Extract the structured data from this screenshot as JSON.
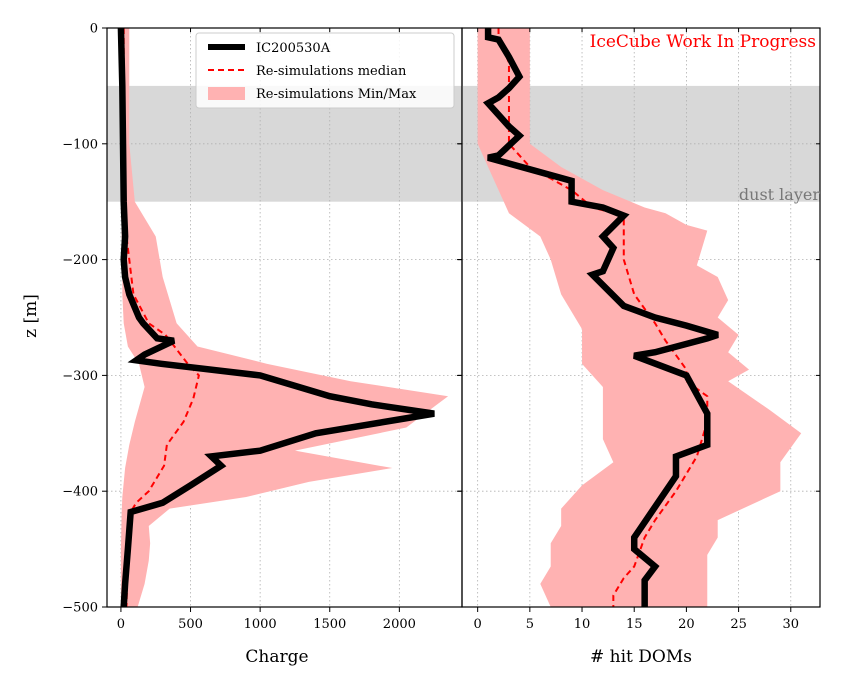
{
  "chart_data": [
    {
      "type": "line",
      "panel": "left",
      "xlabel": "Charge",
      "ylabel": "z [m]",
      "xlim": [
        -100,
        2450
      ],
      "ylim": [
        -500,
        0
      ],
      "xticks": [
        0,
        500,
        1000,
        1500,
        2000
      ],
      "yticks": [
        0,
        -100,
        -200,
        -300,
        -400,
        -500
      ],
      "grid": true,
      "legend": {
        "placement": "top-right",
        "entries": [
          "IC200530A",
          "Re-simulations median",
          "Re-simulations Min/Max"
        ]
      },
      "series": [
        {
          "name": "IC200530A",
          "color": "#000000",
          "points": [
            [
              0,
              0
            ],
            [
              10,
              -50
            ],
            [
              15,
              -100
            ],
            [
              20,
              -150
            ],
            [
              30,
              -180
            ],
            [
              20,
              -200
            ],
            [
              30,
              -215
            ],
            [
              60,
              -230
            ],
            [
              130,
              -250
            ],
            [
              160,
              -255
            ],
            [
              260,
              -268
            ],
            [
              380,
              -270
            ],
            [
              170,
              -282
            ],
            [
              110,
              -287
            ],
            [
              290,
              -290
            ],
            [
              1000,
              -300
            ],
            [
              1500,
              -318
            ],
            [
              1800,
              -325
            ],
            [
              2250,
              -333
            ],
            [
              1400,
              -350
            ],
            [
              1000,
              -365
            ],
            [
              650,
              -370
            ],
            [
              720,
              -378
            ],
            [
              500,
              -395
            ],
            [
              300,
              -410
            ],
            [
              70,
              -418
            ],
            [
              50,
              -450
            ],
            [
              30,
              -480
            ],
            [
              20,
              -500
            ]
          ]
        },
        {
          "name": "Re-simulations median",
          "color": "#ff0000",
          "points": [
            [
              20,
              0
            ],
            [
              20,
              -50
            ],
            [
              25,
              -100
            ],
            [
              30,
              -150
            ],
            [
              40,
              -180
            ],
            [
              60,
              -200
            ],
            [
              90,
              -230
            ],
            [
              200,
              -255
            ],
            [
              320,
              -265
            ],
            [
              480,
              -290
            ],
            [
              560,
              -300
            ],
            [
              520,
              -320
            ],
            [
              450,
              -340
            ],
            [
              330,
              -360
            ],
            [
              310,
              -378
            ],
            [
              200,
              -400
            ],
            [
              110,
              -410
            ],
            [
              60,
              -420
            ],
            [
              50,
              -450
            ],
            [
              40,
              -500
            ]
          ]
        },
        {
          "name": "Re-simulations Min/Max",
          "color": "#ffb2b2",
          "upper": [
            [
              60,
              0
            ],
            [
              60,
              -50
            ],
            [
              60,
              -100
            ],
            [
              100,
              -150
            ],
            [
              250,
              -180
            ],
            [
              300,
              -215
            ],
            [
              400,
              -255
            ],
            [
              550,
              -275
            ],
            [
              1050,
              -290
            ],
            [
              1650,
              -305
            ],
            [
              2350,
              -318
            ],
            [
              2050,
              -345
            ],
            [
              1250,
              -365
            ],
            [
              1950,
              -380
            ],
            [
              1350,
              -392
            ],
            [
              900,
              -405
            ],
            [
              350,
              -415
            ],
            [
              200,
              -430
            ],
            [
              210,
              -445
            ],
            [
              200,
              -460
            ],
            [
              170,
              -480
            ],
            [
              120,
              -500
            ]
          ],
          "lower": [
            [
              0,
              0
            ],
            [
              0,
              -50
            ],
            [
              0,
              -100
            ],
            [
              5,
              -150
            ],
            [
              5,
              -180
            ],
            [
              10,
              -200
            ],
            [
              10,
              -230
            ],
            [
              20,
              -255
            ],
            [
              50,
              -275
            ],
            [
              130,
              -290
            ],
            [
              170,
              -310
            ],
            [
              100,
              -340
            ],
            [
              60,
              -360
            ],
            [
              30,
              -380
            ],
            [
              10,
              -405
            ],
            [
              5,
              -420
            ],
            [
              0,
              -450
            ],
            [
              0,
              -500
            ]
          ]
        }
      ]
    },
    {
      "type": "line",
      "panel": "right",
      "xlabel": "# hit DOMs",
      "xlim": [
        -1.5,
        32.8
      ],
      "ylim": [
        -500,
        0
      ],
      "xticks": [
        0,
        5,
        10,
        15,
        20,
        25,
        30
      ],
      "grid": true,
      "series": [
        {
          "name": "IC200530A",
          "color": "#000000",
          "points": [
            [
              1,
              0
            ],
            [
              1,
              -8
            ],
            [
              2,
              -10
            ],
            [
              3,
              -25
            ],
            [
              4,
              -42
            ],
            [
              3,
              -52
            ],
            [
              2,
              -60
            ],
            [
              1,
              -65
            ],
            [
              2,
              -75
            ],
            [
              3,
              -85
            ],
            [
              4,
              -93
            ],
            [
              2,
              -110
            ],
            [
              1,
              -112
            ],
            [
              9,
              -132
            ],
            [
              9,
              -150
            ],
            [
              12,
              -155
            ],
            [
              14,
              -162
            ],
            [
              12,
              -180
            ],
            [
              13,
              -190
            ],
            [
              12,
              -210
            ],
            [
              11,
              -213
            ],
            [
              14,
              -240
            ],
            [
              17,
              -250
            ],
            [
              20,
              -257
            ],
            [
              23,
              -265
            ],
            [
              22,
              -268
            ],
            [
              17,
              -280
            ],
            [
              15,
              -283
            ],
            [
              20,
              -300
            ],
            [
              22,
              -333
            ],
            [
              22,
              -360
            ],
            [
              19,
              -370
            ],
            [
              19,
              -387
            ],
            [
              15,
              -440
            ],
            [
              15,
              -450
            ],
            [
              17,
              -465
            ],
            [
              16,
              -477
            ],
            [
              16,
              -500
            ]
          ]
        },
        {
          "name": "Re-simulations median",
          "color": "#ff0000",
          "points": [
            [
              2,
              0
            ],
            [
              2,
              -8
            ],
            [
              3,
              -30
            ],
            [
              3,
              -50
            ],
            [
              3,
              -100
            ],
            [
              5,
              -120
            ],
            [
              9,
              -140
            ],
            [
              11,
              -155
            ],
            [
              14,
              -162
            ],
            [
              14,
              -200
            ],
            [
              15,
              -230
            ],
            [
              17,
              -255
            ],
            [
              18,
              -270
            ],
            [
              20,
              -295
            ],
            [
              20,
              -305
            ],
            [
              22,
              -318
            ],
            [
              22,
              -340
            ],
            [
              21,
              -370
            ],
            [
              19,
              -400
            ],
            [
              17,
              -425
            ],
            [
              16,
              -440
            ],
            [
              15,
              -465
            ],
            [
              14,
              -475
            ],
            [
              13,
              -490
            ],
            [
              13,
              -500
            ]
          ]
        },
        {
          "name": "Re-simulations Min/Max",
          "color": "#ffb2b2",
          "upper": [
            [
              5,
              0
            ],
            [
              5,
              -50
            ],
            [
              5,
              -100
            ],
            [
              8,
              -120
            ],
            [
              12,
              -140
            ],
            [
              16,
              -155
            ],
            [
              18,
              -160
            ],
            [
              20,
              -170
            ],
            [
              22,
              -175
            ],
            [
              21,
              -205
            ],
            [
              23,
              -215
            ],
            [
              24,
              -235
            ],
            [
              23,
              -250
            ],
            [
              25,
              -265
            ],
            [
              24,
              -280
            ],
            [
              26,
              -295
            ],
            [
              24,
              -305
            ],
            [
              28,
              -330
            ],
            [
              31,
              -350
            ],
            [
              29,
              -375
            ],
            [
              29,
              -400
            ],
            [
              23,
              -425
            ],
            [
              23,
              -440
            ],
            [
              22,
              -455
            ],
            [
              22,
              -475
            ],
            [
              22,
              -500
            ]
          ],
          "lower": [
            [
              0,
              0
            ],
            [
              0,
              -50
            ],
            [
              0,
              -100
            ],
            [
              1,
              -120
            ],
            [
              2,
              -140
            ],
            [
              3,
              -160
            ],
            [
              6,
              -180
            ],
            [
              7,
              -200
            ],
            [
              8,
              -230
            ],
            [
              10,
              -260
            ],
            [
              10,
              -290
            ],
            [
              12,
              -310
            ],
            [
              12,
              -335
            ],
            [
              12,
              -355
            ],
            [
              13,
              -375
            ],
            [
              10,
              -395
            ],
            [
              8,
              -415
            ],
            [
              8,
              -430
            ],
            [
              7,
              -445
            ],
            [
              7,
              -465
            ],
            [
              6,
              -480
            ],
            [
              7,
              -500
            ]
          ]
        }
      ]
    }
  ],
  "annotations": {
    "watermark": "IceCube Work In Progress",
    "watermark_color": "#ff0000",
    "dust_label": "dust layer",
    "dust_layer_range": [
      -150,
      -50
    ],
    "dust_color": "#d8d8d8",
    "dust_label_color": "#777777"
  }
}
